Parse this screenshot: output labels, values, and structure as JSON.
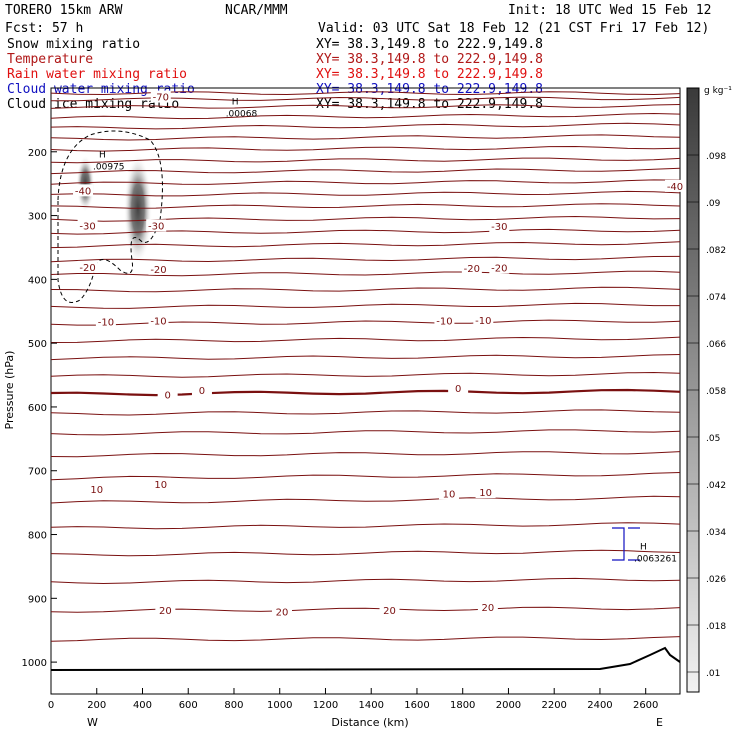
{
  "header": {
    "model": "TORERO   15km ARW",
    "org": "NCAR/MMM",
    "init": "Init: 18 UTC Wed 15 Feb 12",
    "fcst": "Fcst:    57 h",
    "valid": "Valid: 03 UTC Sat 18 Feb 12 (21 CST Fri 17 Feb 12)"
  },
  "fields": [
    {
      "name": "Snow mixing ratio",
      "xy": "XY=  38.3,149.8 to 222.9,149.8",
      "color": "#000000"
    },
    {
      "name": "Temperature",
      "xy": "XY=  38.3,149.8 to 222.9,149.8",
      "color": "#b01818"
    },
    {
      "name": "Rain water mixing ratio",
      "xy": "XY=  38.3,149.8 to 222.9,149.8",
      "color": "#e01010"
    },
    {
      "name": "Cloud water mixing ratio",
      "xy": "XY=  38.3,149.8 to 222.9,149.8",
      "color": "#1010c0"
    },
    {
      "name": "Cloud ice mixing ratio",
      "xy": "XY=  38.3,149.8 to 222.9,149.8",
      "color": "#000000"
    }
  ],
  "chart_data": {
    "type": "heatmap",
    "xlabel": "Distance (km)",
    "ylabel": "Pressure (hPa)",
    "xlim": [
      0,
      2750
    ],
    "ylim": [
      1050,
      100
    ],
    "x_ticks": [
      "0",
      "200",
      "400",
      "600",
      "800",
      "1000",
      "1200",
      "1400",
      "1600",
      "1800",
      "2000",
      "2200",
      "2400",
      "2600"
    ],
    "x_tick_values": [
      0,
      200,
      400,
      600,
      800,
      1000,
      1200,
      1400,
      1600,
      1800,
      2000,
      2200,
      2400,
      2600
    ],
    "y_ticks": [
      "200",
      "300",
      "400",
      "500",
      "600",
      "700",
      "800",
      "900",
      "1000"
    ],
    "y_tick_values": [
      200,
      300,
      400,
      500,
      600,
      700,
      800,
      900,
      1000
    ],
    "endpoint_left": "W",
    "endpoint_right": "E",
    "colorbar": {
      "unit": "g kg⁻¹",
      "labels": [
        ".01",
        ".018",
        ".026",
        ".034",
        ".042",
        ".05",
        ".058",
        ".066",
        ".074",
        ".082",
        ".09",
        ".098"
      ]
    },
    "temperature_labels": [
      {
        "text": "-70",
        "x": 480,
        "p": 115
      },
      {
        "text": "-40",
        "x": 140,
        "p": 262
      },
      {
        "text": "-40",
        "x": 2750,
        "p": 255
      },
      {
        "text": "-30",
        "x": 160,
        "p": 317
      },
      {
        "text": "-30",
        "x": 460,
        "p": 317
      },
      {
        "text": "-30",
        "x": 1960,
        "p": 318
      },
      {
        "text": "-20",
        "x": 160,
        "p": 382
      },
      {
        "text": "-20",
        "x": 470,
        "p": 385
      },
      {
        "text": "-20",
        "x": 1840,
        "p": 384
      },
      {
        "text": "-20",
        "x": 1960,
        "p": 383
      },
      {
        "text": "-10",
        "x": 240,
        "p": 468
      },
      {
        "text": "-10",
        "x": 470,
        "p": 466
      },
      {
        "text": "-10",
        "x": 1720,
        "p": 466
      },
      {
        "text": "-10",
        "x": 1890,
        "p": 465
      },
      {
        "text": "0",
        "x": 510,
        "p": 582
      },
      {
        "text": "0",
        "x": 660,
        "p": 575
      },
      {
        "text": "0",
        "x": 1780,
        "p": 572
      },
      {
        "text": "10",
        "x": 200,
        "p": 730
      },
      {
        "text": "10",
        "x": 480,
        "p": 722
      },
      {
        "text": "10",
        "x": 1740,
        "p": 737
      },
      {
        "text": "10",
        "x": 1900,
        "p": 735
      },
      {
        "text": "20",
        "x": 500,
        "p": 920
      },
      {
        "text": "20",
        "x": 1010,
        "p": 922
      },
      {
        "text": "20",
        "x": 1480,
        "p": 920
      },
      {
        "text": "20",
        "x": 1910,
        "p": 915
      }
    ],
    "maxima": [
      {
        "symbol": "H",
        "value": ".00068",
        "x": 790,
        "p": 132
      },
      {
        "symbol": "H",
        "value": ".00975",
        "x": 210,
        "p": 215
      },
      {
        "symbol": "H",
        "value": ".0063261",
        "x": 2690,
        "p": 830
      }
    ]
  }
}
